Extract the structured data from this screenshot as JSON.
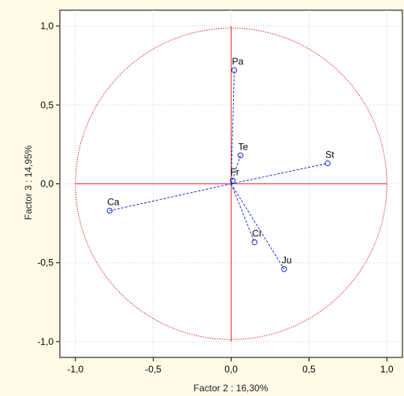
{
  "chart_data": {
    "type": "scatter",
    "xlabel": "Factor 2 : 16,30%",
    "ylabel": "Factor 3 : 14,95%",
    "xlim": [
      -1.1,
      1.1
    ],
    "ylim": [
      -1.1,
      1.1
    ],
    "xticks": [
      {
        "value": -1.0,
        "label": "-1,0"
      },
      {
        "value": -0.5,
        "label": "-0,5"
      },
      {
        "value": 0.0,
        "label": "0,0"
      },
      {
        "value": 0.5,
        "label": "0,5"
      },
      {
        "value": 1.0,
        "label": "1,0"
      }
    ],
    "yticks": [
      {
        "value": 1.0,
        "label": "1,0"
      },
      {
        "value": 0.5,
        "label": "0,5"
      },
      {
        "value": 0.0,
        "label": "0,0"
      },
      {
        "value": -0.5,
        "label": "-0,5"
      },
      {
        "value": -1.0,
        "label": "-1,0"
      }
    ],
    "grid": true,
    "unit_circle": true,
    "points": [
      {
        "label": "Pa",
        "x": 0.02,
        "y": 0.72
      },
      {
        "label": "Te",
        "x": 0.06,
        "y": 0.18
      },
      {
        "label": "St",
        "x": 0.62,
        "y": 0.13
      },
      {
        "label": "Fr",
        "x": 0.01,
        "y": 0.02
      },
      {
        "label": "Ca",
        "x": -0.78,
        "y": -0.17
      },
      {
        "label": "Ci",
        "x": 0.15,
        "y": -0.37
      },
      {
        "label": "Ju",
        "x": 0.34,
        "y": -0.54
      }
    ],
    "colors": {
      "axes_lines": "#e23030",
      "circle": "#e23030",
      "points": "#1b2ad6",
      "vectors": "#1b2ad6",
      "grid": "#cfcfcf",
      "plot_bg": "#ffffff",
      "page_bg": "#fffbe7"
    }
  }
}
